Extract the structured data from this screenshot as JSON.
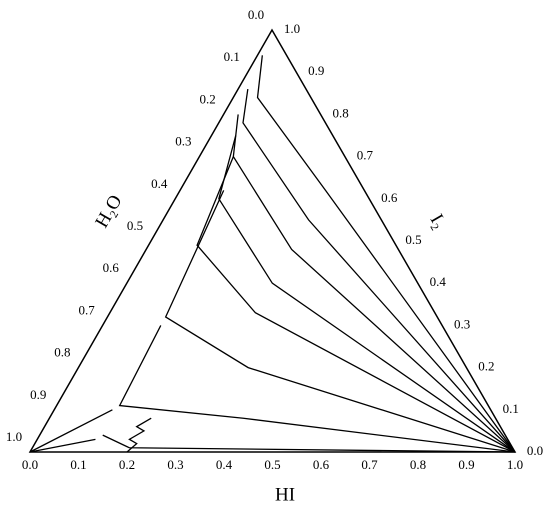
{
  "chart_data": {
    "type": "ternary",
    "axes": {
      "bottom": "HI",
      "left": "H₂O",
      "right": "I₂"
    },
    "hiticks": [
      {
        "value": 0,
        "label": "0.0"
      },
      0.1,
      0.2,
      0.3,
      0.4,
      0.5,
      0.6,
      0.7,
      0.8,
      0.9,
      {
        "value": 1,
        "label": "1.0"
      }
    ],
    "h2oticks": [
      {
        "value": 0,
        "label": "0.0"
      },
      0.1,
      0.2,
      0.3,
      0.4,
      0.5,
      0.6,
      0.7,
      0.8,
      0.9,
      {
        "value": 1,
        "label": "1.0"
      }
    ],
    "i2ticks": [
      {
        "value": 0,
        "label": "0.0"
      },
      0.1,
      0.2,
      0.3,
      0.4,
      0.5,
      0.6,
      0.7,
      0.8,
      0.9,
      {
        "value": 1,
        "label": "1.0"
      }
    ],
    "color": "#000000",
    "series": [
      {
        "hi": [
          1,
          0.3,
          0.05,
          0.01
        ],
        "i2": [
          0,
          0.62,
          0.84,
          0.94
        ]
      },
      {
        "hi": [
          1,
          0.3,
          0.05,
          0.02
        ],
        "i2": [
          0,
          0.55,
          0.78,
          0.86
        ]
      },
      {
        "hi": [
          1,
          0.3,
          0.07,
          0.03
        ],
        "i2": [
          0,
          0.48,
          0.7,
          0.8
        ]
      },
      {
        "hi": [
          1,
          0.3,
          0.09,
          0.05
        ],
        "i2": [
          0,
          0.4,
          0.6,
          0.75
        ]
      },
      {
        "hi": [
          1,
          0.3,
          0.1,
          0.07
        ],
        "i2": [
          0,
          0.33,
          0.49,
          0.7
        ]
      },
      {
        "hi": [
          1,
          0.35,
          0.12,
          0.09
        ],
        "i2": [
          0,
          0.2,
          0.32,
          0.62
        ]
      },
      {
        "hi": [
          1,
          0.4,
          0.13,
          0.12
        ],
        "i2": [
          0,
          0.08,
          0.11,
          0.3
        ]
      },
      {
        "hi": [
          1,
          0.2,
          0.13
        ],
        "i2": [
          0,
          0.01,
          0.04
        ]
      },
      {
        "hi": [
          0,
          0.12
        ],
        "i2": [
          0,
          0.1
        ]
      },
      {
        "hi": [
          0,
          0.12
        ],
        "i2": [
          0,
          0.03
        ]
      },
      {
        "hi": [
          0.2,
          0.21,
          0.19,
          0.21,
          0.19,
          0.21
        ],
        "i2": [
          0,
          0.02,
          0.03,
          0.05,
          0.06,
          0.08
        ]
      }
    ]
  }
}
